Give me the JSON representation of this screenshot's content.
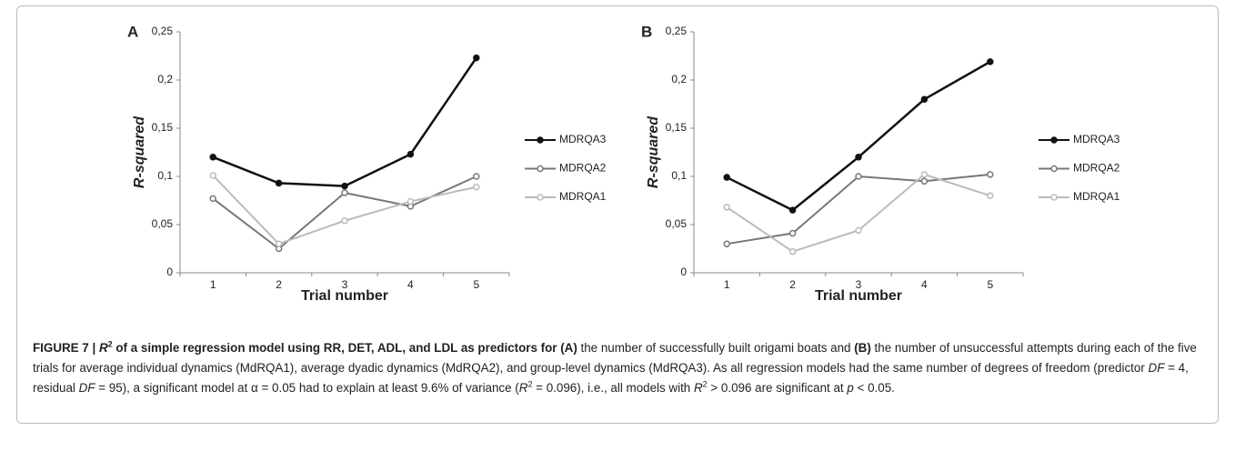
{
  "chart_data": [
    {
      "type": "line",
      "panel_label": "A",
      "xlabel": "Trial number",
      "ylabel": "R-squared",
      "categories": [
        "1",
        "2",
        "3",
        "4",
        "5"
      ],
      "series": [
        {
          "name": "MDRQA3",
          "color": "#111111",
          "values": [
            0.12,
            0.093,
            0.09,
            0.123,
            0.223
          ]
        },
        {
          "name": "MDRQA2",
          "color": "#777777",
          "values": [
            0.077,
            0.025,
            0.083,
            0.069,
            0.1
          ]
        },
        {
          "name": "MDRQA1",
          "color": "#bbbbbb",
          "values": [
            0.101,
            0.03,
            0.054,
            0.074,
            0.089
          ]
        }
      ],
      "ylim": [
        0,
        0.25
      ],
      "yticks": [
        0,
        {
          "value": 0.05,
          "label": "0,05"
        },
        {
          "value": 0.1,
          "label": "0,1"
        },
        {
          "value": 0.15,
          "label": "0,15"
        },
        {
          "value": 0.2,
          "label": "0,2"
        },
        {
          "value": 0.25,
          "label": "0,25"
        }
      ],
      "grid": false,
      "legend": "right"
    },
    {
      "type": "line",
      "panel_label": "B",
      "xlabel": "Trial number",
      "ylabel": "R-squared",
      "categories": [
        "1",
        "2",
        "3",
        "4",
        "5"
      ],
      "series": [
        {
          "name": "MDRQA3",
          "color": "#111111",
          "values": [
            0.099,
            0.065,
            0.12,
            0.18,
            0.219
          ]
        },
        {
          "name": "MDRQA2",
          "color": "#777777",
          "values": [
            0.03,
            0.041,
            0.1,
            0.095,
            0.102
          ]
        },
        {
          "name": "MDRQA1",
          "color": "#bbbbbb",
          "values": [
            0.068,
            0.022,
            0.044,
            0.102,
            0.08
          ]
        }
      ],
      "ylim": [
        0,
        0.25
      ],
      "yticks": [
        0,
        {
          "value": 0.05,
          "label": "0,05"
        },
        {
          "value": 0.1,
          "label": "0,1"
        },
        {
          "value": 0.15,
          "label": "0,15"
        },
        {
          "value": 0.2,
          "label": "0,2"
        },
        {
          "value": 0.25,
          "label": "0,25"
        }
      ],
      "grid": false,
      "legend": "right"
    }
  ],
  "caption": [
    "FIGURE 7 | ",
    "R",
    "2",
    " of a simple regression model using RR, DET, ADL, and LDL as predictors for (A)",
    " the number of successfully built origami boats and ",
    "(B)",
    " the number of unsuccessful attempts during each of the five trials for average individual dynamics (MdRQA1), average dyadic dynamics (MdRQA2), and group-level dynamics (MdRQA3). As all regression models had the same number of degrees of freedom (predictor ",
    "DF",
    " = 4, residual ",
    "DF",
    " = 95), a significant model at α = 0.05 had to explain at least 9.6% of variance (",
    "R",
    "2",
    " = 0.096), i.e., all models with ",
    "R",
    "2",
    " > 0.096 are significant at ",
    "p",
    " < 0.05."
  ]
}
